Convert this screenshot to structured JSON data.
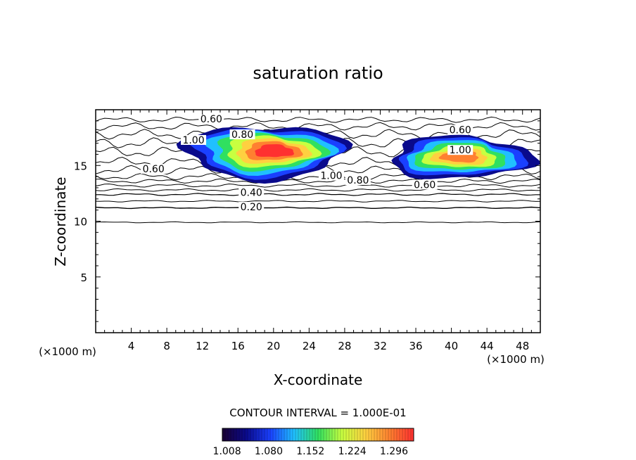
{
  "chart_data": {
    "type": "heatmap",
    "title": "saturation ratio",
    "xlabel": "X-coordinate",
    "ylabel": "Z-coordinate",
    "x_unit": "(×1000 m)",
    "y_unit": "(×1000 m)",
    "xlim": [
      0,
      50
    ],
    "ylim": [
      0,
      20
    ],
    "x_ticks": [
      "4",
      "8",
      "12",
      "16",
      "20",
      "24",
      "28",
      "32",
      "36",
      "40",
      "44",
      "48"
    ],
    "y_ticks": [
      "5",
      "10",
      "15"
    ],
    "contour_interval_text": "CONTOUR INTERVAL = 1.000E-01",
    "colorbar": {
      "min": 1.0,
      "max": 1.33,
      "tick_labels": [
        "1.008",
        "1.080",
        "1.152",
        "1.224",
        "1.296"
      ],
      "colors": [
        "#1a0033",
        "#0a0a8c",
        "#1a40ff",
        "#20c0ff",
        "#30e060",
        "#c8ff40",
        "#ffd040",
        "#ff8030",
        "#ff3030"
      ]
    },
    "contour_labels": [
      {
        "text": "0.60",
        "x": 13.0,
        "z": 19.0
      },
      {
        "text": "0.80",
        "x": 16.5,
        "z": 17.6
      },
      {
        "text": "1.00",
        "x": 11.0,
        "z": 17.1
      },
      {
        "text": "0.60",
        "x": 6.5,
        "z": 14.5
      },
      {
        "text": "1.00",
        "x": 26.5,
        "z": 13.9
      },
      {
        "text": "0.80",
        "x": 29.5,
        "z": 13.5
      },
      {
        "text": "0.60",
        "x": 37.0,
        "z": 13.1
      },
      {
        "text": "0.60",
        "x": 41.0,
        "z": 18.0
      },
      {
        "text": "1.00",
        "x": 41.0,
        "z": 16.2
      },
      {
        "text": "0.40",
        "x": 17.5,
        "z": 12.4
      },
      {
        "text": "0.20",
        "x": 17.5,
        "z": 11.1
      }
    ],
    "supersaturated_regions": [
      {
        "x_range": [
          10,
          28
        ],
        "z_range": [
          13.8,
          18.6
        ],
        "peak": 1.3
      },
      {
        "x_range": [
          33,
          49
        ],
        "z_range": [
          13.8,
          17.6
        ],
        "peak": 1.25
      }
    ],
    "grid": false
  }
}
